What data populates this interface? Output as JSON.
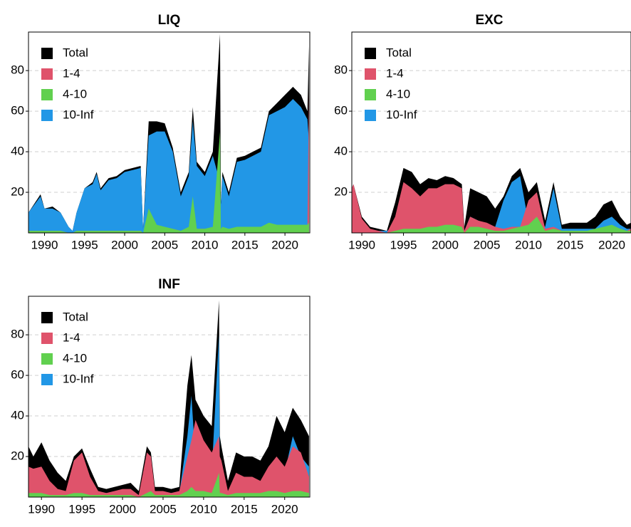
{
  "chart_data": [
    {
      "type": "area",
      "title": "LIQ",
      "x": [
        1988,
        1989.5,
        1990,
        1991,
        1992,
        1993,
        1993.5,
        1994,
        1995,
        1996,
        1996.5,
        1997,
        1998,
        1999,
        2000,
        2001,
        2002,
        2002.3,
        2003,
        2004,
        2005,
        2006,
        2007,
        2008,
        2008.5,
        2009,
        2010,
        2011,
        2011.9,
        2012,
        2012.2,
        2013,
        2014,
        2015,
        2016,
        2017,
        2018,
        2019,
        2020,
        2021,
        2022,
        2022.8,
        2023
      ],
      "series": [
        {
          "name": "Total",
          "color": "#000000",
          "values": [
            10,
            19,
            12,
            13,
            10,
            3,
            1,
            10,
            22,
            25,
            30,
            22,
            27,
            28,
            31,
            32,
            33,
            2,
            55,
            55,
            54,
            42,
            20,
            30,
            62,
            35,
            30,
            40,
            98,
            15,
            30,
            20,
            37,
            38,
            40,
            42,
            60,
            64,
            68,
            72,
            68,
            60,
            92
          ]
        },
        {
          "name": "1-4",
          "color": "#df536b",
          "values": [
            1,
            1,
            1,
            1,
            1,
            0,
            0,
            1,
            1,
            1,
            1,
            1,
            1,
            1,
            1,
            1,
            1,
            0,
            5,
            3,
            2,
            2,
            1,
            2,
            3,
            2,
            2,
            2,
            3,
            1,
            2,
            1,
            2,
            2,
            2,
            2,
            3,
            3,
            3,
            3,
            3,
            3,
            70
          ]
        },
        {
          "name": "4-10",
          "color": "#61d04f",
          "values": [
            1,
            1,
            1,
            1,
            1,
            0,
            0,
            1,
            1,
            1,
            1,
            1,
            1,
            1,
            1,
            1,
            1,
            0,
            12,
            4,
            3,
            2,
            1,
            3,
            18,
            2,
            2,
            3,
            50,
            2,
            3,
            2,
            3,
            3,
            3,
            3,
            5,
            4,
            4,
            4,
            4,
            4,
            5
          ]
        },
        {
          "name": "10-Inf",
          "color": "#2297e6",
          "values": [
            10,
            18,
            12,
            12,
            10,
            3,
            1,
            10,
            22,
            24,
            29,
            21,
            26,
            27,
            30,
            31,
            32,
            2,
            48,
            50,
            50,
            40,
            18,
            28,
            55,
            33,
            28,
            38,
            25,
            14,
            28,
            18,
            35,
            36,
            38,
            40,
            58,
            60,
            62,
            66,
            62,
            56,
            45
          ]
        }
      ],
      "xlim": [
        1988,
        2023.1
      ],
      "ylim": [
        0,
        99
      ],
      "xticks": [
        1990,
        1995,
        2000,
        2005,
        2010,
        2015,
        2020
      ],
      "yticks": [
        20,
        40,
        60,
        80
      ],
      "grid": true,
      "legend": "top-left"
    },
    {
      "type": "area",
      "title": "EXC",
      "x": [
        1988.8,
        1989,
        1990,
        1991,
        1992,
        1993,
        1994,
        1995,
        1996,
        1997,
        1998,
        1999,
        2000,
        2001,
        2002,
        2002.3,
        2003,
        2004,
        2005,
        2006,
        2007,
        2008,
        2009,
        2010,
        2011,
        2012,
        2013,
        2014,
        2015,
        2016,
        2017,
        2018,
        2019,
        2020,
        2021,
        2021.8,
        2022.3
      ],
      "series": [
        {
          "name": "Total",
          "color": "#000000",
          "values": [
            22,
            24,
            8,
            3,
            2,
            1,
            15,
            32,
            30,
            24,
            27,
            26,
            28,
            27,
            24,
            3,
            22,
            20,
            18,
            12,
            18,
            28,
            32,
            20,
            25,
            6,
            25,
            4,
            5,
            5,
            5,
            8,
            14,
            16,
            8,
            4,
            5
          ]
        },
        {
          "name": "1-4",
          "color": "#df536b",
          "values": [
            22,
            24,
            7,
            2,
            1,
            0,
            8,
            25,
            22,
            18,
            22,
            22,
            24,
            24,
            22,
            1,
            8,
            6,
            5,
            3,
            2,
            3,
            3,
            16,
            20,
            2,
            3,
            1,
            1,
            1,
            1,
            1,
            2,
            3,
            2,
            1,
            2
          ]
        },
        {
          "name": "4-10",
          "color": "#61d04f",
          "values": [
            0,
            0,
            0,
            0,
            0,
            0,
            1,
            2,
            2,
            2,
            3,
            3,
            4,
            4,
            3,
            0,
            3,
            3,
            2,
            1,
            1,
            2,
            3,
            4,
            8,
            1,
            2,
            1,
            1,
            1,
            1,
            2,
            3,
            4,
            2,
            1,
            1
          ]
        },
        {
          "name": "10-Inf",
          "color": "#2297e6",
          "values": [
            2,
            2,
            1,
            1,
            1,
            1,
            3,
            5,
            4,
            3,
            3,
            3,
            3,
            3,
            3,
            1,
            8,
            6,
            4,
            3,
            16,
            25,
            28,
            5,
            6,
            3,
            22,
            2,
            2,
            2,
            2,
            2,
            6,
            8,
            4,
            2,
            2
          ]
        }
      ],
      "xlim": [
        1988.8,
        2022.3
      ],
      "ylim": [
        0,
        99
      ],
      "xticks": [
        1990,
        1995,
        2000,
        2005,
        2010,
        2015,
        2020
      ],
      "yticks": [
        20,
        40,
        60,
        80
      ],
      "grid": true,
      "legend": "top-left"
    },
    {
      "type": "area",
      "title": "INF",
      "x": [
        1988.4,
        1989,
        1990,
        1991,
        1992,
        1993,
        1994,
        1995,
        1996,
        1997,
        1998,
        1999,
        2000,
        2001,
        2002,
        2003,
        2003.5,
        2004,
        2005,
        2006,
        2007,
        2008,
        2008.5,
        2009,
        2010,
        2011,
        2011.9,
        2012,
        2012.2,
        2013,
        2014,
        2015,
        2016,
        2017,
        2018,
        2019,
        2020,
        2021,
        2022,
        2023
      ],
      "series": [
        {
          "name": "Total",
          "color": "#000000",
          "values": [
            25,
            20,
            27,
            18,
            12,
            8,
            20,
            24,
            14,
            5,
            4,
            5,
            6,
            7,
            3,
            25,
            22,
            5,
            5,
            4,
            5,
            55,
            70,
            48,
            40,
            35,
            97,
            30,
            25,
            8,
            22,
            20,
            20,
            18,
            25,
            40,
            32,
            44,
            38,
            30
          ]
        },
        {
          "name": "1-4",
          "color": "#df536b",
          "values": [
            15,
            14,
            15,
            8,
            4,
            3,
            18,
            22,
            10,
            3,
            2,
            3,
            4,
            4,
            1,
            22,
            20,
            3,
            3,
            2,
            3,
            20,
            28,
            38,
            28,
            22,
            30,
            20,
            18,
            3,
            12,
            10,
            10,
            8,
            15,
            20,
            15,
            25,
            22,
            10
          ]
        },
        {
          "name": "4-10",
          "color": "#61d04f",
          "values": [
            2,
            2,
            2,
            1,
            1,
            1,
            2,
            2,
            1,
            1,
            1,
            1,
            1,
            1,
            0,
            2,
            3,
            1,
            1,
            1,
            1,
            3,
            5,
            3,
            3,
            2,
            12,
            2,
            2,
            1,
            2,
            2,
            2,
            2,
            3,
            3,
            2,
            3,
            3,
            2
          ]
        },
        {
          "name": "10-Inf",
          "color": "#2297e6",
          "values": [
            8,
            6,
            8,
            5,
            3,
            2,
            6,
            8,
            5,
            2,
            2,
            2,
            3,
            3,
            1,
            4,
            3,
            2,
            2,
            2,
            2,
            30,
            50,
            18,
            15,
            12,
            80,
            10,
            8,
            2,
            6,
            5,
            6,
            5,
            8,
            15,
            12,
            30,
            20,
            15
          ]
        }
      ],
      "xlim": [
        1988.4,
        2023.1
      ],
      "ylim": [
        0,
        99
      ],
      "xticks": [
        1990,
        1995,
        2000,
        2005,
        2010,
        2015,
        2020
      ],
      "yticks": [
        20,
        40,
        60,
        80
      ],
      "grid": true,
      "legend": "top-left"
    }
  ]
}
